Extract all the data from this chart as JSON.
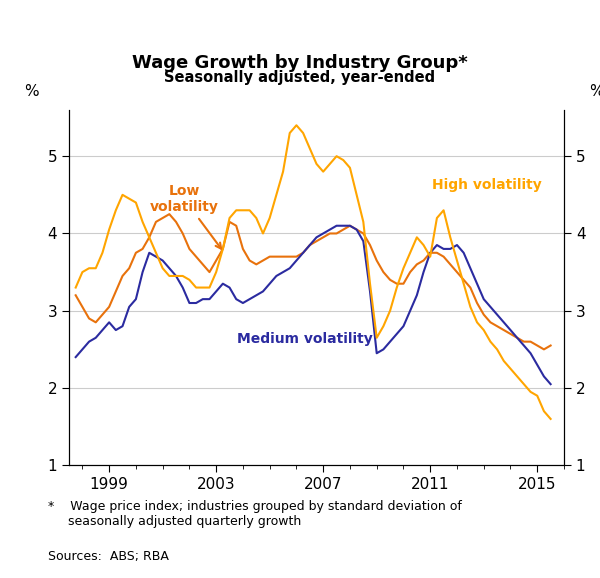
{
  "title": "Wage Growth by Industry Group*",
  "subtitle": "Seasonally adjusted, year-ended",
  "footnote": "*    Wage price index; industries grouped by standard deviation of\n     seasonally adjusted quarterly growth",
  "sources": "Sources:  ABS; RBA",
  "ylim": [
    1,
    5.6
  ],
  "yticks": [
    1,
    2,
    3,
    4,
    5
  ],
  "colors": {
    "low": "#E8720C",
    "medium": "#2B2BA0",
    "high": "#FFA500"
  },
  "label_low": "Low\nvolatility",
  "label_medium": "Medium volatility",
  "label_high": "High volatility",
  "xlim_left": 1997.5,
  "xlim_right": 2016.0,
  "xticks": [
    1999,
    2003,
    2007,
    2011,
    2015
  ],
  "low_x": [
    1997.75,
    1998.0,
    1998.25,
    1998.5,
    1998.75,
    1999.0,
    1999.25,
    1999.5,
    1999.75,
    2000.0,
    2000.25,
    2000.5,
    2000.75,
    2001.0,
    2001.25,
    2001.5,
    2001.75,
    2002.0,
    2002.25,
    2002.5,
    2002.75,
    2003.0,
    2003.25,
    2003.5,
    2003.75,
    2004.0,
    2004.25,
    2004.5,
    2004.75,
    2005.0,
    2005.25,
    2005.5,
    2005.75,
    2006.0,
    2006.25,
    2006.5,
    2006.75,
    2007.0,
    2007.25,
    2007.5,
    2007.75,
    2008.0,
    2008.25,
    2008.5,
    2008.75,
    2009.0,
    2009.25,
    2009.5,
    2009.75,
    2010.0,
    2010.25,
    2010.5,
    2010.75,
    2011.0,
    2011.25,
    2011.5,
    2011.75,
    2012.0,
    2012.25,
    2012.5,
    2012.75,
    2013.0,
    2013.25,
    2013.5,
    2013.75,
    2014.0,
    2014.25,
    2014.5,
    2014.75,
    2015.0,
    2015.25,
    2015.5
  ],
  "low_y": [
    3.2,
    3.05,
    2.9,
    2.85,
    2.95,
    3.05,
    3.25,
    3.45,
    3.55,
    3.75,
    3.8,
    3.95,
    4.15,
    4.2,
    4.25,
    4.15,
    4.0,
    3.8,
    3.7,
    3.6,
    3.5,
    3.65,
    3.8,
    4.15,
    4.1,
    3.8,
    3.65,
    3.6,
    3.65,
    3.7,
    3.7,
    3.7,
    3.7,
    3.7,
    3.75,
    3.85,
    3.9,
    3.95,
    4.0,
    4.0,
    4.05,
    4.1,
    4.05,
    4.0,
    3.85,
    3.65,
    3.5,
    3.4,
    3.35,
    3.35,
    3.5,
    3.6,
    3.65,
    3.75,
    3.75,
    3.7,
    3.6,
    3.5,
    3.4,
    3.3,
    3.1,
    2.95,
    2.85,
    2.8,
    2.75,
    2.7,
    2.65,
    2.6,
    2.6,
    2.55,
    2.5,
    2.55
  ],
  "medium_x": [
    1997.75,
    1998.0,
    1998.25,
    1998.5,
    1998.75,
    1999.0,
    1999.25,
    1999.5,
    1999.75,
    2000.0,
    2000.25,
    2000.5,
    2000.75,
    2001.0,
    2001.25,
    2001.5,
    2001.75,
    2002.0,
    2002.25,
    2002.5,
    2002.75,
    2003.0,
    2003.25,
    2003.5,
    2003.75,
    2004.0,
    2004.25,
    2004.5,
    2004.75,
    2005.0,
    2005.25,
    2005.5,
    2005.75,
    2006.0,
    2006.25,
    2006.5,
    2006.75,
    2007.0,
    2007.25,
    2007.5,
    2007.75,
    2008.0,
    2008.25,
    2008.5,
    2008.75,
    2009.0,
    2009.25,
    2009.5,
    2009.75,
    2010.0,
    2010.25,
    2010.5,
    2010.75,
    2011.0,
    2011.25,
    2011.5,
    2011.75,
    2012.0,
    2012.25,
    2012.5,
    2012.75,
    2013.0,
    2013.25,
    2013.5,
    2013.75,
    2014.0,
    2014.25,
    2014.5,
    2014.75,
    2015.0,
    2015.25,
    2015.5
  ],
  "medium_y": [
    2.4,
    2.5,
    2.6,
    2.65,
    2.75,
    2.85,
    2.75,
    2.8,
    3.05,
    3.15,
    3.5,
    3.75,
    3.7,
    3.65,
    3.55,
    3.45,
    3.3,
    3.1,
    3.1,
    3.15,
    3.15,
    3.25,
    3.35,
    3.3,
    3.15,
    3.1,
    3.15,
    3.2,
    3.25,
    3.35,
    3.45,
    3.5,
    3.55,
    3.65,
    3.75,
    3.85,
    3.95,
    4.0,
    4.05,
    4.1,
    4.1,
    4.1,
    4.05,
    3.9,
    3.25,
    2.45,
    2.5,
    2.6,
    2.7,
    2.8,
    3.0,
    3.2,
    3.5,
    3.75,
    3.85,
    3.8,
    3.8,
    3.85,
    3.75,
    3.55,
    3.35,
    3.15,
    3.05,
    2.95,
    2.85,
    2.75,
    2.65,
    2.55,
    2.45,
    2.3,
    2.15,
    2.05
  ],
  "high_x": [
    1997.75,
    1998.0,
    1998.25,
    1998.5,
    1998.75,
    1999.0,
    1999.25,
    1999.5,
    1999.75,
    2000.0,
    2000.25,
    2000.5,
    2000.75,
    2001.0,
    2001.25,
    2001.5,
    2001.75,
    2002.0,
    2002.25,
    2002.5,
    2002.75,
    2003.0,
    2003.25,
    2003.5,
    2003.75,
    2004.0,
    2004.25,
    2004.5,
    2004.75,
    2005.0,
    2005.25,
    2005.5,
    2005.75,
    2006.0,
    2006.25,
    2006.5,
    2006.75,
    2007.0,
    2007.25,
    2007.5,
    2007.75,
    2008.0,
    2008.25,
    2008.5,
    2008.75,
    2009.0,
    2009.25,
    2009.5,
    2009.75,
    2010.0,
    2010.25,
    2010.5,
    2010.75,
    2011.0,
    2011.25,
    2011.5,
    2011.75,
    2012.0,
    2012.25,
    2012.5,
    2012.75,
    2013.0,
    2013.25,
    2013.5,
    2013.75,
    2014.0,
    2014.25,
    2014.5,
    2014.75,
    2015.0,
    2015.25,
    2015.5
  ],
  "high_y": [
    3.3,
    3.5,
    3.55,
    3.55,
    3.75,
    4.05,
    4.3,
    4.5,
    4.45,
    4.4,
    4.15,
    3.95,
    3.75,
    3.55,
    3.45,
    3.45,
    3.45,
    3.4,
    3.3,
    3.3,
    3.3,
    3.5,
    3.8,
    4.2,
    4.3,
    4.3,
    4.3,
    4.2,
    4.0,
    4.2,
    4.5,
    4.8,
    5.3,
    5.4,
    5.3,
    5.1,
    4.9,
    4.8,
    4.9,
    5.0,
    4.95,
    4.85,
    4.5,
    4.15,
    3.35,
    2.65,
    2.8,
    3.0,
    3.3,
    3.55,
    3.75,
    3.95,
    3.85,
    3.7,
    4.2,
    4.3,
    3.95,
    3.65,
    3.35,
    3.05,
    2.85,
    2.75,
    2.6,
    2.5,
    2.35,
    2.25,
    2.15,
    2.05,
    1.95,
    1.9,
    1.7,
    1.6
  ]
}
